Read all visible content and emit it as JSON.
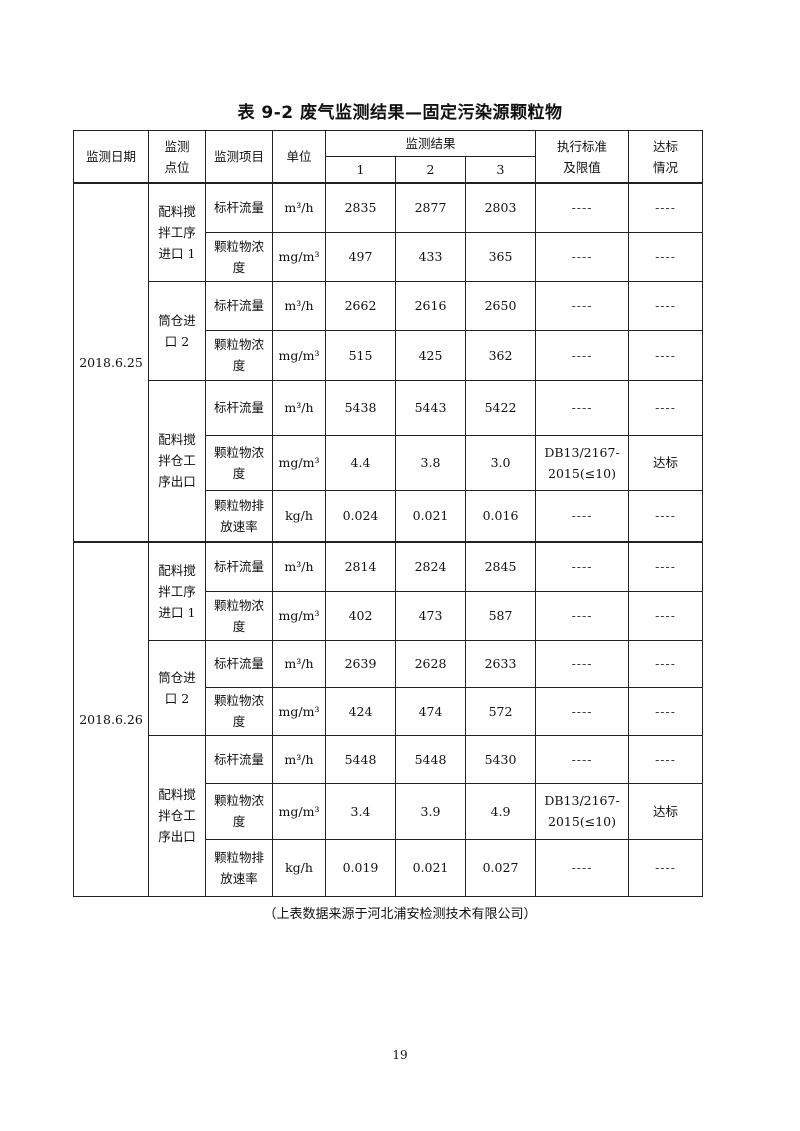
{
  "title": "表 9-2 废气监测结果—固定污染源颗粒物",
  "headers": {
    "date": "监测日期",
    "point": "监测点位",
    "item": "监测项目",
    "unit": "单位",
    "results": "监测结果",
    "runs": [
      "1",
      "2",
      "3"
    ],
    "standard": "执行标准及限值",
    "compliance": "达标情况"
  },
  "groups": [
    {
      "date": "2018.6.25",
      "points": [
        {
          "name": "配料搅拌工序进口 1",
          "items": [
            {
              "item": "标杆流量",
              "unit": "m³/h",
              "values": [
                "2835",
                "2877",
                "2803"
              ],
              "standard": "----",
              "compliance": "----"
            },
            {
              "item": "颗粒物浓度",
              "unit": "mg/m³",
              "values": [
                "497",
                "433",
                "365"
              ],
              "standard": "----",
              "compliance": "----"
            }
          ]
        },
        {
          "name": "筒仓进口 2",
          "items": [
            {
              "item": "标杆流量",
              "unit": "m³/h",
              "values": [
                "2662",
                "2616",
                "2650"
              ],
              "standard": "----",
              "compliance": "----"
            },
            {
              "item": "颗粒物浓度",
              "unit": "mg/m³",
              "values": [
                "515",
                "425",
                "362"
              ],
              "standard": "----",
              "compliance": "----"
            }
          ]
        },
        {
          "name": "配料搅拌仓工序出口",
          "items": [
            {
              "item": "标杆流量",
              "unit": "m³/h",
              "values": [
                "5438",
                "5443",
                "5422"
              ],
              "standard": "----",
              "compliance": "----"
            },
            {
              "item": "颗粒物浓度",
              "unit": "mg/m³",
              "values": [
                "4.4",
                "3.8",
                "3.0"
              ],
              "standard": "DB13/2167-2015(≤10)",
              "compliance": "达标"
            },
            {
              "item": "颗粒物排放速率",
              "unit": "kg/h",
              "values": [
                "0.024",
                "0.021",
                "0.016"
              ],
              "standard": "----",
              "compliance": "----"
            }
          ]
        }
      ]
    },
    {
      "date": "2018.6.26",
      "points": [
        {
          "name": "配料搅拌工序进口 1",
          "items": [
            {
              "item": "标杆流量",
              "unit": "m³/h",
              "values": [
                "2814",
                "2824",
                "2845"
              ],
              "standard": "----",
              "compliance": "----"
            },
            {
              "item": "颗粒物浓度",
              "unit": "mg/m³",
              "values": [
                "402",
                "473",
                "587"
              ],
              "standard": "----",
              "compliance": "----"
            }
          ]
        },
        {
          "name": "筒仓进口 2",
          "items": [
            {
              "item": "标杆流量",
              "unit": "m³/h",
              "values": [
                "2639",
                "2628",
                "2633"
              ],
              "standard": "----",
              "compliance": "----"
            },
            {
              "item": "颗粒物浓度",
              "unit": "mg/m³",
              "values": [
                "424",
                "474",
                "572"
              ],
              "standard": "----",
              "compliance": "----"
            }
          ]
        },
        {
          "name": "配料搅拌仓工序出口",
          "items": [
            {
              "item": "标杆流量",
              "unit": "m³/h",
              "values": [
                "5448",
                "5448",
                "5430"
              ],
              "standard": "----",
              "compliance": "----"
            },
            {
              "item": "颗粒物浓度",
              "unit": "mg/m³",
              "values": [
                "3.4",
                "3.9",
                "4.9"
              ],
              "standard": "DB13/2167-2015(≤10)",
              "compliance": "达标"
            },
            {
              "item": "颗粒物排放速率",
              "unit": "kg/h",
              "values": [
                "0.019",
                "0.021",
                "0.027"
              ],
              "standard": "----",
              "compliance": "----"
            }
          ]
        }
      ]
    }
  ],
  "note": "（上表数据来源于河北浦安检测技术有限公司）",
  "page_number": "19"
}
